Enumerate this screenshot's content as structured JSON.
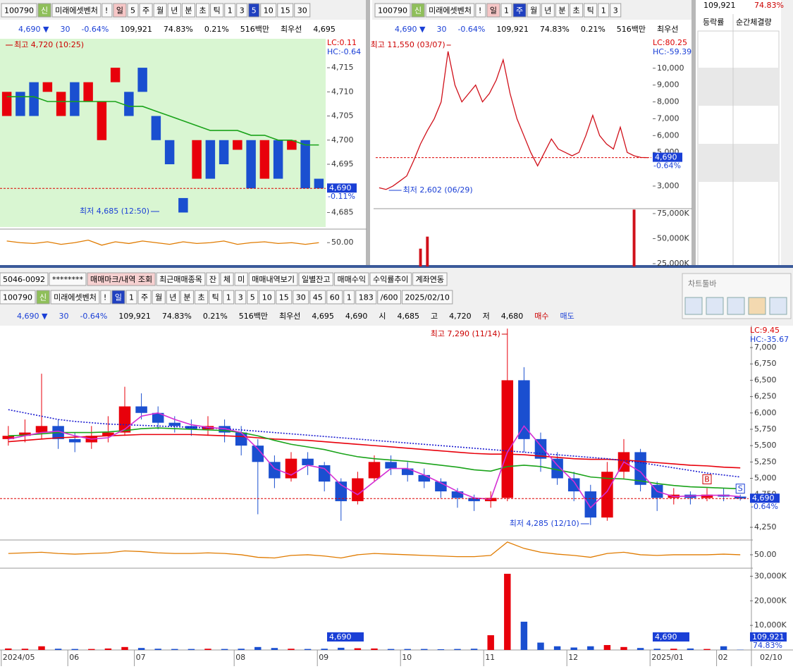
{
  "top_left": {
    "toolbar": [
      "100790",
      "신",
      "미래에셋벤처",
      "!",
      "일",
      "5",
      "주",
      "월",
      "년",
      "분",
      "초",
      "틱",
      "1",
      "3",
      "5",
      "10",
      "15",
      "30"
    ],
    "quote": [
      "4,690 ▼",
      "30",
      "-0.64%",
      "109,921",
      "74.83%",
      "0.21%",
      "516백만",
      "최우선",
      "4,695"
    ]
  },
  "top_mid": {
    "toolbar": [
      "100790",
      "신",
      "미래에셋벤처",
      "!",
      "일",
      "1",
      "주",
      "월",
      "년",
      "분",
      "초",
      "틱",
      "1",
      "3"
    ],
    "quote": [
      "4,690 ▼",
      "30",
      "-0.64%",
      "109,921",
      "74.83%",
      "0.21%",
      "516백만",
      "최우선"
    ]
  },
  "right_panel": {
    "values": [
      "109,921",
      "74.83%"
    ],
    "headers": [
      "등락률",
      "순간체결량"
    ]
  },
  "account_bar": [
    "5046-0092",
    "********",
    "매매마크/내역 조회",
    "최근매매종목",
    "잔",
    "체",
    "미",
    "매매내역보기",
    "일별잔고",
    "매매수익",
    "수익률추이",
    "계좌연동"
  ],
  "main_toolbar": [
    "100790",
    "신",
    "미래에셋벤처",
    "!",
    "일",
    "1",
    "주",
    "월",
    "년",
    "분",
    "초",
    "틱",
    "1",
    "3",
    "5",
    "10",
    "15",
    "30",
    "45",
    "60",
    "1",
    "183",
    "/600",
    "2025/02/10"
  ],
  "main_quote": [
    "4,690 ▼",
    "30",
    "-0.64%",
    "109,921",
    "74.83%",
    "0.21%",
    "516백만",
    "최우선",
    "4,695",
    "4,690",
    "시",
    "4,685",
    "고",
    "4,720",
    "저",
    "4,680",
    "매수",
    "매도"
  ],
  "chart_toolbar": {
    "title": "차트툴바"
  },
  "chart_data": [
    {
      "type": "candlestick",
      "up_color": "#e8000b",
      "down_color": "#1a4fd0",
      "open": [
        4705,
        4710,
        4712,
        4710,
        4705,
        4712,
        4708,
        4700,
        4712,
        4710,
        4715,
        4705,
        4700,
        4688,
        4692,
        4700,
        4700,
        4698,
        4700,
        4692,
        4700,
        4698,
        4700,
        4692
      ],
      "close": [
        4710,
        4705,
        4705,
        4712,
        4710,
        4705,
        4712,
        4708,
        4715,
        4705,
        4710,
        4700,
        4695,
        4685,
        4700,
        4692,
        4695,
        4700,
        4690,
        4700,
        4692,
        4700,
        4690,
        4690
      ],
      "series": [
        {
          "color": "#1aa31a",
          "values": [
            4709,
            4709,
            4709,
            4708,
            4708,
            4708,
            4708,
            4708,
            4708,
            4707,
            4707,
            4706,
            4705,
            4704,
            4703,
            4702,
            4702,
            4702,
            4701,
            4701,
            4700,
            4700,
            4699,
            4699
          ]
        }
      ],
      "ylim": [
        4682,
        4721
      ],
      "yticks": [
        {
          "value": 4715,
          "label": "4,715"
        },
        {
          "value": 4710,
          "label": "4,710"
        },
        {
          "value": 4705,
          "label": "4,705"
        },
        {
          "value": 4700,
          "label": "4,700"
        },
        {
          "value": 4695,
          "label": "4,695"
        },
        {
          "value": 4690,
          "label": "4,690"
        },
        {
          "value": 4685,
          "label": "4,685"
        }
      ],
      "high_label": "최고 4,720 (10:25)",
      "low_label": "최저 4,685 (12:50)",
      "lc_label": "LC:0.11",
      "hc_label": "HC:-0.64",
      "last": 4690,
      "last_label": "4,690",
      "change_label": "-0.11%"
    },
    {
      "type": "line",
      "color": "#e07b00",
      "values": [
        52,
        50,
        49,
        51,
        48,
        50,
        53,
        47,
        51,
        49,
        52,
        50,
        48,
        51,
        49,
        50,
        52,
        48,
        50,
        51,
        49,
        50,
        48,
        50
      ],
      "ylim": [
        35,
        62
      ],
      "yticks": [
        {
          "value": 50,
          "label": "50.00"
        }
      ]
    },
    {
      "type": "line",
      "color": "#d0101a",
      "values": [
        2900,
        2800,
        3000,
        3300,
        3600,
        4500,
        5500,
        6300,
        7000,
        8000,
        11000,
        9000,
        8000,
        8500,
        9000,
        8000,
        8500,
        9300,
        10500,
        8500,
        7000,
        6000,
        5000,
        4200,
        5000,
        5800,
        5200,
        5000,
        4800,
        5000,
        6000,
        7200,
        6000,
        5500,
        5200,
        6500,
        5000,
        4800,
        4700,
        4690
      ],
      "ylim": [
        1700,
        11750
      ],
      "yticks": [
        {
          "value": 10000,
          "label": "10,000"
        },
        {
          "value": 9000,
          "label": "9,000"
        },
        {
          "value": 8000,
          "label": "8,000"
        },
        {
          "value": 7000,
          "label": "7,000"
        },
        {
          "value": 6000,
          "label": "6,000"
        },
        {
          "value": 5000,
          "label": "5,000"
        },
        {
          "value": 3000,
          "label": "3,000"
        }
      ],
      "high_label": "최고 11,550 (03/07)",
      "low_label": "최저 2,602 (06/29)",
      "lc_label": "LC:80.25",
      "hc_label": "HC:-59.39",
      "last": 4690,
      "last_label": "4,690",
      "change_label": "-0.64%"
    },
    {
      "type": "bar",
      "color": "#d0101a",
      "values": [
        3000,
        3000,
        3000,
        3000,
        3000,
        3000,
        40000,
        52000,
        3000,
        3000,
        3000,
        3000,
        3000,
        3000,
        3000,
        3000,
        3000,
        3000,
        3000,
        3000,
        3000,
        3000,
        3000,
        3000,
        3000,
        3000,
        3000,
        3000,
        3000,
        3000,
        3000,
        3000,
        3000,
        3000,
        3000,
        3000,
        3000,
        79000,
        3000,
        3000
      ],
      "ylim": [
        22200,
        79200
      ],
      "yticks": [
        {
          "value": 75000,
          "label": "75,000K"
        },
        {
          "value": 50000,
          "label": "50,000K"
        },
        {
          "value": 25000,
          "label": "25,000K"
        }
      ]
    },
    {
      "type": "candlestick",
      "up_color": "#e8000b",
      "down_color": "#1a4fd0",
      "categories": [
        "2024/05",
        null,
        null,
        null,
        "06",
        null,
        null,
        null,
        "07",
        null,
        null,
        null,
        null,
        null,
        "08",
        null,
        null,
        null,
        null,
        "09",
        null,
        null,
        null,
        null,
        "10",
        null,
        null,
        null,
        null,
        "11",
        null,
        null,
        null,
        null,
        "12",
        null,
        null,
        null,
        null,
        "2025/01",
        null,
        null,
        null,
        "02",
        null
      ],
      "open": [
        5600,
        5650,
        5700,
        5800,
        5600,
        5550,
        5650,
        5700,
        6100,
        6000,
        5850,
        5800,
        5750,
        5800,
        5700,
        5500,
        5250,
        5000,
        5300,
        5200,
        4950,
        4650,
        5000,
        5250,
        5150,
        5050,
        4950,
        4800,
        4700,
        4650,
        4700,
        6500,
        5600,
        5300,
        5000,
        4800,
        4400,
        5100,
        5400,
        4900,
        4700,
        4750,
        4700,
        4750,
        4720
      ],
      "high": [
        5800,
        5900,
        6600,
        5900,
        5700,
        5800,
        5950,
        6400,
        6300,
        6100,
        5950,
        5900,
        5950,
        5900,
        5800,
        5600,
        5350,
        5400,
        5400,
        5250,
        5000,
        5100,
        5350,
        5350,
        5250,
        5150,
        5000,
        4850,
        4750,
        4800,
        7290,
        6700,
        5700,
        5400,
        5100,
        4900,
        5250,
        5600,
        5450,
        4950,
        4850,
        4800,
        4850,
        4850,
        4750
      ],
      "low": [
        5500,
        5550,
        5600,
        5450,
        5400,
        5450,
        5550,
        5650,
        5900,
        5750,
        5700,
        5650,
        5650,
        5550,
        5350,
        4450,
        4850,
        4950,
        5050,
        4800,
        4350,
        4600,
        4950,
        5050,
        4950,
        4850,
        4700,
        4550,
        4500,
        4550,
        4650,
        5400,
        5100,
        4900,
        4650,
        4285,
        4350,
        5000,
        4800,
        4500,
        4600,
        4600,
        4650,
        4650,
        4660
      ],
      "close": [
        5650,
        5700,
        5800,
        5600,
        5550,
        5650,
        5700,
        6100,
        6000,
        5850,
        5800,
        5750,
        5800,
        5700,
        5500,
        5250,
        5000,
        5300,
        5200,
        4950,
        4650,
        5000,
        5250,
        5150,
        5050,
        4950,
        4800,
        4700,
        4650,
        4700,
        6500,
        5600,
        5300,
        5000,
        4800,
        4400,
        5100,
        5400,
        4900,
        4700,
        4750,
        4700,
        4750,
        4720,
        4690
      ],
      "series": [
        {
          "color": "#e8000b",
          "values": [
            5560,
            5580,
            5600,
            5620,
            5630,
            5640,
            5650,
            5660,
            5670,
            5670,
            5670,
            5670,
            5660,
            5650,
            5640,
            5620,
            5600,
            5590,
            5580,
            5560,
            5540,
            5520,
            5500,
            5480,
            5460,
            5440,
            5420,
            5400,
            5380,
            5370,
            5370,
            5360,
            5340,
            5320,
            5300,
            5290,
            5290,
            5280,
            5260,
            5240,
            5220,
            5200,
            5190,
            5170,
            5160
          ]
        },
        {
          "color": "#1a1ad0",
          "dash": true,
          "values": [
            6050,
            6000,
            5950,
            5900,
            5870,
            5850,
            5830,
            5820,
            5810,
            5800,
            5790,
            5780,
            5770,
            5760,
            5740,
            5720,
            5700,
            5680,
            5660,
            5640,
            5620,
            5600,
            5580,
            5560,
            5540,
            5520,
            5500,
            5480,
            5460,
            5440,
            5420,
            5400,
            5380,
            5360,
            5340,
            5320,
            5300,
            5270,
            5240,
            5200,
            5160,
            5120,
            5080,
            5050,
            5020
          ]
        },
        {
          "color": "#1aa31a",
          "values": [
            5650,
            5660,
            5680,
            5700,
            5700,
            5700,
            5710,
            5730,
            5760,
            5770,
            5760,
            5750,
            5740,
            5730,
            5700,
            5650,
            5580,
            5520,
            5480,
            5440,
            5380,
            5330,
            5300,
            5280,
            5260,
            5230,
            5200,
            5170,
            5130,
            5110,
            5180,
            5200,
            5180,
            5130,
            5080,
            5020,
            5000,
            4990,
            4960,
            4920,
            4890,
            4870,
            4860,
            4850,
            4840
          ]
        },
        {
          "color": "#d42fd4",
          "values": [
            5600,
            5650,
            5700,
            5720,
            5650,
            5600,
            5620,
            5750,
            5950,
            6000,
            5900,
            5820,
            5780,
            5760,
            5700,
            5450,
            5150,
            5050,
            5200,
            5150,
            4900,
            4750,
            4950,
            5150,
            5150,
            5050,
            4930,
            4800,
            4700,
            4680,
            5400,
            5800,
            5500,
            5200,
            4950,
            4550,
            4800,
            5250,
            5100,
            4800,
            4720,
            4730,
            4740,
            4740,
            4720
          ]
        }
      ],
      "ylim": [
        4067,
        7324
      ],
      "yticks": [
        {
          "value": 7000,
          "label": "7,000"
        },
        {
          "value": 6750,
          "label": "6,750"
        },
        {
          "value": 6500,
          "label": "6,500"
        },
        {
          "value": 6250,
          "label": "6,250"
        },
        {
          "value": 6000,
          "label": "6,000"
        },
        {
          "value": 5750,
          "label": "5,750"
        },
        {
          "value": 5500,
          "label": "5,500"
        },
        {
          "value": 5250,
          "label": "5,250"
        },
        {
          "value": 5000,
          "label": "5,000"
        },
        {
          "value": 4750,
          "label": "4,750"
        },
        {
          "value": 4250,
          "label": "4,250"
        }
      ],
      "high_label": "최고 7,290 (11/14)",
      "low_label": "최저 4,285 (12/10)",
      "lc_label": "LC:9.45",
      "hc_label": "HC:-35.67",
      "last": 4690,
      "last_label": "4,690",
      "change_label": "-0.64%",
      "trade_marks": [
        "B",
        "S"
      ],
      "date_label": "02/10"
    },
    {
      "type": "line",
      "color": "#e07b00",
      "values": [
        52,
        53,
        54,
        52,
        51,
        52,
        53,
        56,
        55,
        53,
        52,
        52,
        53,
        52,
        50,
        46,
        45,
        49,
        50,
        48,
        45,
        50,
        52,
        51,
        50,
        49,
        48,
        47,
        47,
        49,
        70,
        60,
        54,
        51,
        49,
        46,
        52,
        54,
        50,
        49,
        50,
        50,
        50,
        51,
        50
      ],
      "ylim": [
        30,
        71
      ],
      "yticks": [
        {
          "value": 50,
          "label": "50.00"
        }
      ]
    },
    {
      "type": "bar",
      "up_color": "#e8000b",
      "down_color": "#1a4fd0",
      "values": [
        600,
        500,
        1500,
        500,
        400,
        400,
        600,
        1200,
        800,
        500,
        400,
        400,
        500,
        400,
        500,
        1200,
        800,
        500,
        400,
        500,
        900,
        700,
        600,
        400,
        400,
        400,
        300,
        400,
        500,
        6000,
        31000,
        11500,
        3000,
        1500,
        1000,
        1500,
        2000,
        1200,
        800,
        500,
        500,
        600,
        400,
        1500,
        110
      ],
      "ylim": [
        0,
        32700
      ],
      "yticks": [
        {
          "value": 30000,
          "label": "30,000K"
        },
        {
          "value": 20000,
          "label": "20,000K"
        },
        {
          "value": 10000,
          "label": "10,000K"
        }
      ],
      "last_label": "109,921",
      "ratio_label": "74.83%"
    }
  ]
}
